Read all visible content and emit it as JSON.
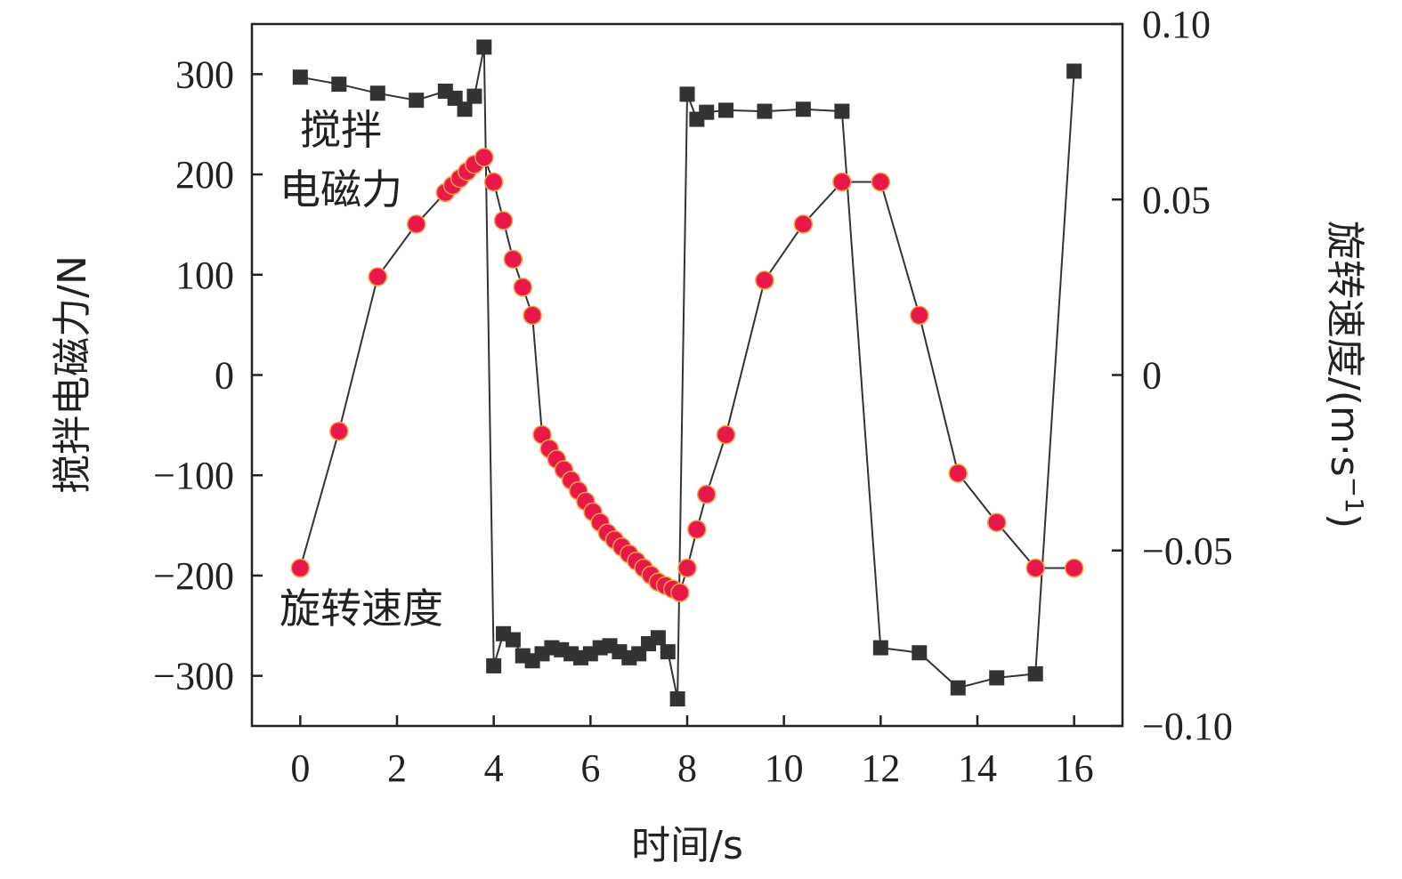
{
  "chart_data": {
    "type": "line",
    "xlabel": "时间/s",
    "ylabel_left": "搅拌电磁力/N",
    "ylabel_right_main": "旋转速度/(m·s",
    "ylabel_right_sup": "−1",
    "ylabel_right_close": ")",
    "xlim": [
      -1,
      17
    ],
    "ylim_left": [
      -350,
      350
    ],
    "ylim_right": [
      -0.1,
      0.1
    ],
    "x_ticks": [
      0,
      2,
      4,
      6,
      8,
      10,
      12,
      14,
      16
    ],
    "x_tick_labels": [
      "0",
      "2",
      "4",
      "6",
      "8",
      "10",
      "12",
      "14",
      "16"
    ],
    "y_left_ticks": [
      300,
      200,
      100,
      0,
      -100,
      -200,
      -300
    ],
    "y_left_tick_labels": [
      "300",
      "200",
      "100",
      "0",
      "−100",
      "−200",
      "−300"
    ],
    "y_right_ticks": [
      0.1,
      0.05,
      0,
      -0.05,
      -0.1
    ],
    "y_right_tick_labels": [
      "0.10",
      "0.05",
      "0",
      "−0.05",
      "−0.10"
    ],
    "grid": false,
    "legend": "none",
    "annotations": [
      {
        "text": "搅拌",
        "series": "force"
      },
      {
        "text": "电磁力",
        "series": "force"
      },
      {
        "text": "旋转速度",
        "series": "speed"
      }
    ],
    "series": [
      {
        "id": "force",
        "axis": "left",
        "marker": "square",
        "color": "#333333",
        "x": [
          0,
          0.8,
          1.6,
          2.4,
          3.0,
          3.2,
          3.4,
          3.6,
          3.8,
          4.0,
          4.2,
          4.4,
          4.6,
          4.8,
          5.0,
          5.2,
          5.4,
          5.6,
          5.8,
          6.0,
          6.2,
          6.4,
          6.6,
          6.8,
          7.0,
          7.2,
          7.4,
          7.6,
          7.8,
          8.0,
          8.2,
          8.4,
          8.8,
          9.6,
          10.4,
          11.2,
          12.0,
          12.8,
          13.6,
          14.4,
          15.2,
          16.0
        ],
        "y": [
          297,
          290,
          281,
          274,
          283,
          276,
          265,
          278,
          327,
          -290,
          -258,
          -264,
          -280,
          -285,
          -278,
          -272,
          -274,
          -278,
          -282,
          -278,
          -272,
          -270,
          -276,
          -282,
          -278,
          -268,
          -262,
          -276,
          -323,
          280,
          255,
          262,
          264,
          263,
          265,
          263,
          -272,
          -277,
          -312,
          -302,
          -298,
          303
        ]
      },
      {
        "id": "speed",
        "axis": "right",
        "marker": "circle",
        "color": "#e8194a",
        "x": [
          0,
          0.8,
          1.6,
          2.4,
          3.0,
          3.15,
          3.3,
          3.45,
          3.6,
          3.8,
          4.0,
          4.2,
          4.4,
          4.6,
          4.8,
          5.0,
          5.15,
          5.3,
          5.45,
          5.6,
          5.75,
          5.9,
          6.05,
          6.2,
          6.35,
          6.5,
          6.65,
          6.8,
          6.95,
          7.1,
          7.25,
          7.4,
          7.55,
          7.7,
          7.85,
          8.0,
          8.2,
          8.4,
          8.8,
          9.6,
          10.4,
          11.2,
          12.0,
          12.8,
          13.6,
          14.4,
          15.2,
          16.0
        ],
        "y": [
          -0.055,
          -0.016,
          0.028,
          0.043,
          0.052,
          0.054,
          0.056,
          0.058,
          0.06,
          0.062,
          0.055,
          0.044,
          0.033,
          0.025,
          0.017,
          -0.017,
          -0.021,
          -0.024,
          -0.027,
          -0.03,
          -0.033,
          -0.036,
          -0.039,
          -0.042,
          -0.045,
          -0.047,
          -0.049,
          -0.051,
          -0.053,
          -0.055,
          -0.057,
          -0.059,
          -0.06,
          -0.061,
          -0.062,
          -0.055,
          -0.044,
          -0.034,
          -0.017,
          0.027,
          0.043,
          0.055,
          0.055,
          0.017,
          -0.028,
          -0.042,
          -0.055,
          -0.055
        ]
      }
    ]
  }
}
